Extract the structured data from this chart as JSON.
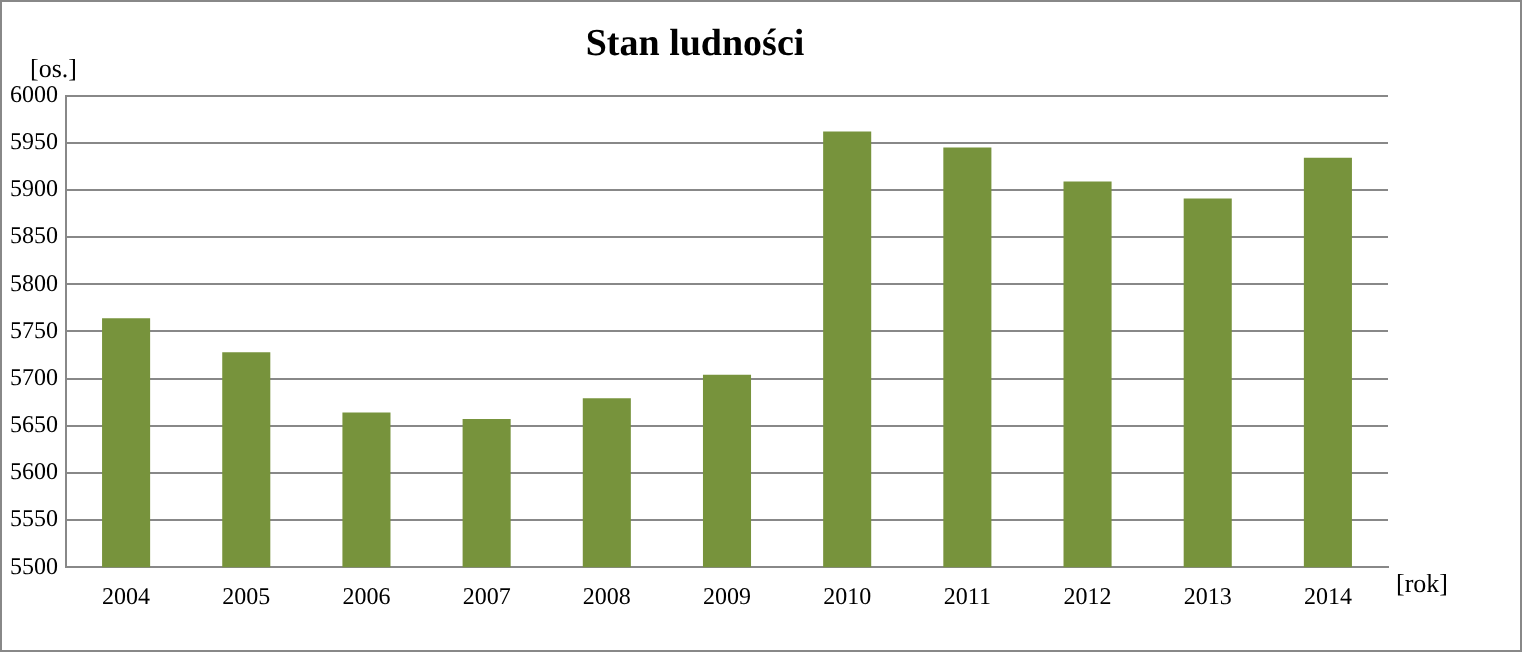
{
  "chart_data": {
    "type": "bar",
    "title": "Stan ludności",
    "ylabel": "[os.]",
    "xlabel": "[rok]",
    "categories": [
      "2004",
      "2005",
      "2006",
      "2007",
      "2008",
      "2009",
      "2010",
      "2011",
      "2012",
      "2013",
      "2014"
    ],
    "values": [
      5764,
      5728,
      5664,
      5657,
      5679,
      5704,
      5962,
      5945,
      5909,
      5891,
      5934
    ],
    "color": "#77933c",
    "ylim": [
      5500,
      6000
    ],
    "yticks": [
      5500,
      5550,
      5600,
      5650,
      5700,
      5750,
      5800,
      5850,
      5900,
      5950,
      6000
    ],
    "grid": "y",
    "legend": false
  }
}
